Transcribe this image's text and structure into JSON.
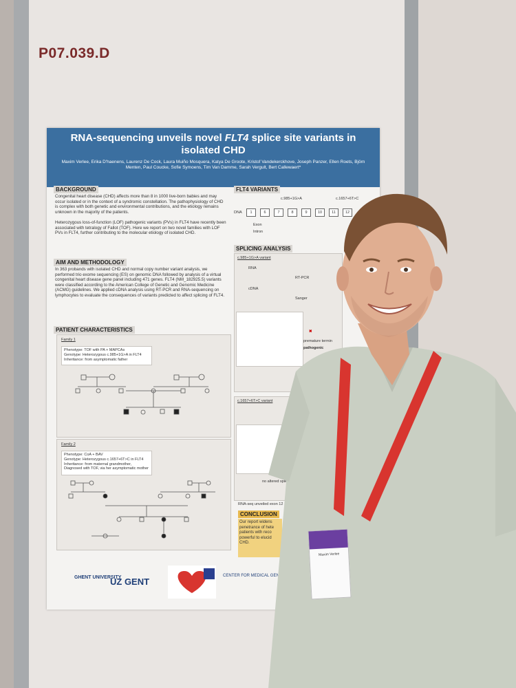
{
  "board_id": "P07.039.D",
  "poster": {
    "title_pre": "RNA-sequencing unveils novel ",
    "title_gene": "FLT4",
    "title_post": " splice site variants in isolated CHD",
    "authors": "Maxim Verlee, Erika D'haenens, Laurenz De Cock, Laura Muiño Mosquera, Katya De Groote, Kristof Vandekerckhove, Joseph Panzer, Ellen Roets, Björn Menten, Paul Coucke, Sofie Symoens, Tim Van Damme, Sarah Vergult, Bert Callewaert*",
    "sections": {
      "background_h": "BACKGROUND",
      "background_1": "Congenital heart disease (CHD) affects more than 8 in 1000 live-born babies and may occur isolated or in the context of a syndromic constellation. The pathophysiology of CHD is complex with both genetic and environmental contributions, and the etiology remains unknown in the majority of the patients.",
      "background_2": "Heterozygous loss-of-function (LOF) pathogenic variants (PVs) in FLT4 have recently been associated with tetralogy of Fallot (TOF). Here we report on two novel families with LOF PVs in FLT4, further contributing to the molecular etiology of isolated CHD.",
      "aim_h": "AIM AND METHODOLOGY",
      "aim": "In 363 probands with isolated CHD and normal copy number variant analysis, we performed trio exome sequencing (ES) on genomic DNA followed by analysis of a virtual congenital heart disease gene panel including 471 genes. FLT4 (NM_182925.5) variants were classified according to the American College of Genetic and Genomic Medicine (ACMG) guidelines. We applied cDNA analysis using RT-PCR and RNA-sequencing on lymphocytes to evaluate the consequences of variants predicted to affect splicing of FLT4.",
      "patient_h": "PATIENT CHARACTERISTICS",
      "family1": "Family 1",
      "family1_phenotype": "Phenotype: TOF with PA + MAPCAs",
      "family1_genotype": "Genotype: Heterozygous c.985+1G>A in FLT4",
      "family1_inheritance": "Inheritance: from asymptomatic father",
      "family2": "Family 2",
      "family2_phenotype": "Phenotype: CoA + BAV",
      "family2_genotype": "Genotype: Heterozygous c.1657+6T>C in FLT4",
      "family2_inheritance": "Inheritance: from maternal grandmother, Diagnosed with TOF, via her asymptomatic mother",
      "variants_h": "FLT4 VARIANTS",
      "variant1": "c.985+1G>A",
      "variant2": "c.1657+6T>C",
      "dna": "DNA",
      "exon": "Exon",
      "intron": "Intron",
      "exons": [
        "1",
        "6",
        "7",
        "8",
        "9",
        "10",
        "11",
        "12"
      ],
      "splicing_h": "SPLICING ANALYSIS",
      "splice1": "c.985+1G>A variant",
      "splice2": "c.1657+6T>C variant",
      "rna": "RNA",
      "cdna": "cDNA",
      "rtpcr": "RT-PCR",
      "sanger": "Sanger",
      "premature": "premature termin",
      "pathogenic": "pathogenic",
      "no_altered": "no altered splic",
      "rnaseq": "RNA-seq unveiled exon 12",
      "conclusion_h": "CONCLUSION",
      "conclusion": "Our report widens penetrance of hete patients with reco powerful to elucid CHD."
    },
    "footnote": "TOF: tetralogy of Fallot; PA: pulmonary valve atresia; PS: pulmonary valve stenosis; BAV: bicuspid aortic valve; CoA: coarctation aortae; MAPCAs: major aortopulmonary collateral arteries; VSD: ventricular septal defect; WT: wild type",
    "logos": {
      "ghent": "GHENT UNIVERSITY",
      "uz": "UZ GENT",
      "cmg": "CENTER FOR MEDICAL GENETICS GHENT"
    }
  },
  "badge": {
    "name": "Maxim Verlee"
  },
  "colors": {
    "header_blue": "#3b6fa0",
    "board_id": "#7a2a2a",
    "conclusion": "#f1d27f",
    "lanyard": "#d8352f"
  }
}
